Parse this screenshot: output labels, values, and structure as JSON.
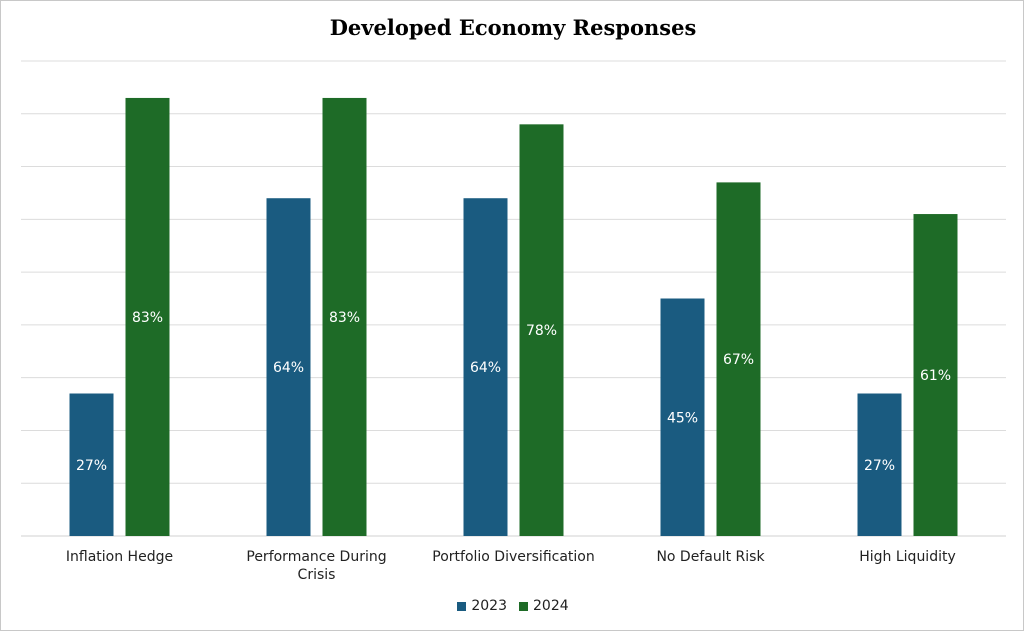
{
  "chart_data": {
    "type": "bar",
    "title": "Developed Economy Responses",
    "categories": [
      [
        "Inflation Hedge"
      ],
      [
        "Performance During",
        "Crisis"
      ],
      [
        "Portfolio Diversification"
      ],
      [
        "No Default Risk"
      ],
      [
        "High Liquidity"
      ]
    ],
    "series": [
      {
        "name": "2023",
        "color": "#1a5b80",
        "values": [
          27,
          64,
          64,
          45,
          27
        ],
        "labels": [
          "27%",
          "64%",
          "64%",
          "45%",
          "27%"
        ]
      },
      {
        "name": "2024",
        "color": "#1e6b27",
        "values": [
          83,
          83,
          78,
          67,
          61
        ],
        "labels": [
          "83%",
          "83%",
          "78%",
          "67%",
          "61%"
        ]
      }
    ],
    "ylim": [
      0,
      90
    ],
    "y_gridline_step": 10,
    "grid": true,
    "y_axis_labels_shown": false,
    "legend_position": "bottom-center"
  }
}
